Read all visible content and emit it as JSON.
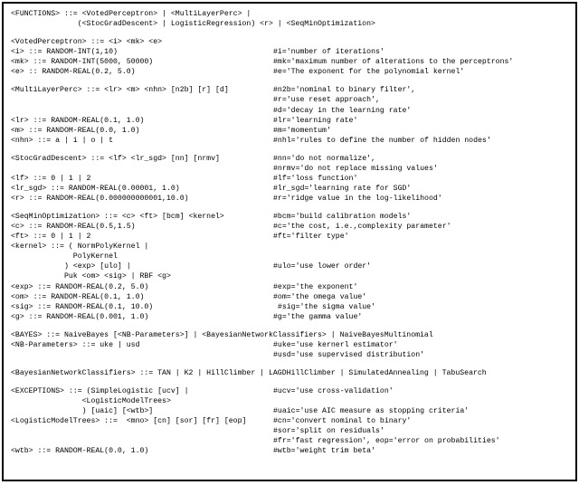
{
  "lines": [
    {
      "type": "full",
      "text": "<FUNCTIONS> ::= <VotedPerceptron> | <MultiLayerPerc> |"
    },
    {
      "type": "full",
      "text": "               (<StocGradDescent> | LogisticRegression) <r> | <SeqMinOptimization>"
    },
    {
      "type": "gap"
    },
    {
      "type": "full",
      "text": "<VotedPerceptron> ::= <i> <mk> <e>"
    },
    {
      "type": "pair",
      "lhs": "<i> ::= RANDOM-INT(1,10)",
      "rhs": "#i='number of iterations'"
    },
    {
      "type": "pair",
      "lhs": "<mk> ::= RANDOM-INT(5000, 50000)",
      "rhs": "#mk='maximum number of alterations to the perceptrons'"
    },
    {
      "type": "pair",
      "lhs": "<e> :: RANDOM-REAL(0.2, 5.0)",
      "rhs": "#e='The exponent for the polynomial kernel'"
    },
    {
      "type": "gap"
    },
    {
      "type": "pair",
      "lhs": "<MultiLayerPerc> ::= <lr> <m> <nhn> [n2b] [r] [d]",
      "rhs": "#n2b='nominal to binary filter',"
    },
    {
      "type": "pair",
      "lhs": "",
      "rhs": "#r='use reset approach',"
    },
    {
      "type": "pair",
      "lhs": "",
      "rhs": "#d='decay in the learning rate'"
    },
    {
      "type": "pair",
      "lhs": "<lr> ::= RANDOM-REAL(0.1, 1.0)",
      "rhs": "#lr='learning rate'"
    },
    {
      "type": "pair",
      "lhs": "<m> ::= RANDOM-REAL(0.0, 1.0)",
      "rhs": "#m='momentum'"
    },
    {
      "type": "pair",
      "lhs": "<nhn> ::= a | i | o | t",
      "rhs": "#nhl='rules to define the number of hidden nodes'"
    },
    {
      "type": "gap"
    },
    {
      "type": "pair",
      "lhs": "<StocGradDescent> ::= <lf> <lr_sgd> [nn] [nrmv]",
      "rhs": "#nn='do not normalize',"
    },
    {
      "type": "pair",
      "lhs": "",
      "rhs": "#nrmv='do not replace missing values'"
    },
    {
      "type": "pair",
      "lhs": "<lf> ::= 0 | 1 | 2",
      "rhs": "#lf='loss function'"
    },
    {
      "type": "pair",
      "lhs": "<lr_sgd> ::= RANDOM-REAL(0.00001, 1.0)",
      "rhs": "#lr_sgd='learning rate for SGD'"
    },
    {
      "type": "pair",
      "lhs": "<r> ::= RANDOM-REAL(0.000000000001,10.0)",
      "rhs": "#r='ridge value in the log-likelihood'"
    },
    {
      "type": "gap"
    },
    {
      "type": "pair",
      "lhs": "<SeqMinOptimization> ::= <c> <ft> [bcm] <kernel>",
      "rhs": "#bcm='build calibration models'"
    },
    {
      "type": "pair",
      "lhs": "<c> ::= RANDOM-REAL(0.5,1.5)",
      "rhs": "#c='the cost, i.e.,complexity parameter'"
    },
    {
      "type": "pair",
      "lhs": "<ft> ::= 0 | 1 | 2",
      "rhs": "#ft='filter type'"
    },
    {
      "type": "full",
      "text": "<kernel> ::= ( NormPolyKernel |"
    },
    {
      "type": "full",
      "text": "              PolyKernel"
    },
    {
      "type": "pair",
      "lhs": "            ) <exp> [ulo] |",
      "rhs": "#ulo='use lower order'"
    },
    {
      "type": "full",
      "text": "            Puk <om> <sig> | RBF <g>"
    },
    {
      "type": "pair",
      "lhs": "<exp> ::= RANDOM-REAL(0.2, 5.0)",
      "rhs": "#exp='the exponent'"
    },
    {
      "type": "pair",
      "lhs": "<om> ::= RANDOM-REAL(0.1, 1.0)",
      "rhs": "#om='the omega value'"
    },
    {
      "type": "pair",
      "lhs": "<sig> ::= RANDOM-REAL(0.1, 10.0)",
      "rhs": " #sig='the sigma value'"
    },
    {
      "type": "pair",
      "lhs": "<g> ::= RANDOM-REAL(0.001, 1.0)",
      "rhs": "#g='the gamma value'"
    },
    {
      "type": "gap"
    },
    {
      "type": "full",
      "text": "<BAYES> ::= NaiveBayes [<NB-Parameters>] | <BayesianNetworkClassifiers> | NaiveBayesMultinomial"
    },
    {
      "type": "pair",
      "lhs": "<NB-Parameters> ::= uke | usd",
      "rhs": "#uke='use kernerl estimator'"
    },
    {
      "type": "pair",
      "lhs": "",
      "rhs": "#usd='use supervised distribution'"
    },
    {
      "type": "gap"
    },
    {
      "type": "full",
      "text": "<BayesianNetworkClassifiers> ::= TAN | K2 | HillClimber | LAGDHillClimber | SimulatedAnnealing | TabuSearch"
    },
    {
      "type": "gap"
    },
    {
      "type": "pair",
      "lhs": "<EXCEPTIONS> ::= (SimpleLogistic [ucv] |",
      "rhs": "#ucv='use cross-validation'"
    },
    {
      "type": "full",
      "text": "                <LogisticModelTrees>"
    },
    {
      "type": "pair",
      "lhs": "                ) [uaic] [<wtb>]",
      "rhs": "#uaic='use AIC measure as stopping criteria'"
    },
    {
      "type": "pair",
      "lhs": "<LogisticModelTrees> ::=  <mno> [cn] [sor] [fr] [eop]",
      "rhs": "#cn='convert nominal to binary'"
    },
    {
      "type": "pair",
      "lhs": "",
      "rhs": "#sor='split on residuals'"
    },
    {
      "type": "pair",
      "lhs": "",
      "rhs": "#fr='fast regression', eop='error on probabilities'"
    },
    {
      "type": "pair",
      "lhs": "<wtb> ::= RANDOM-REAL(0.0, 1.0)",
      "rhs": "#wtb='weight trim beta'"
    }
  ]
}
